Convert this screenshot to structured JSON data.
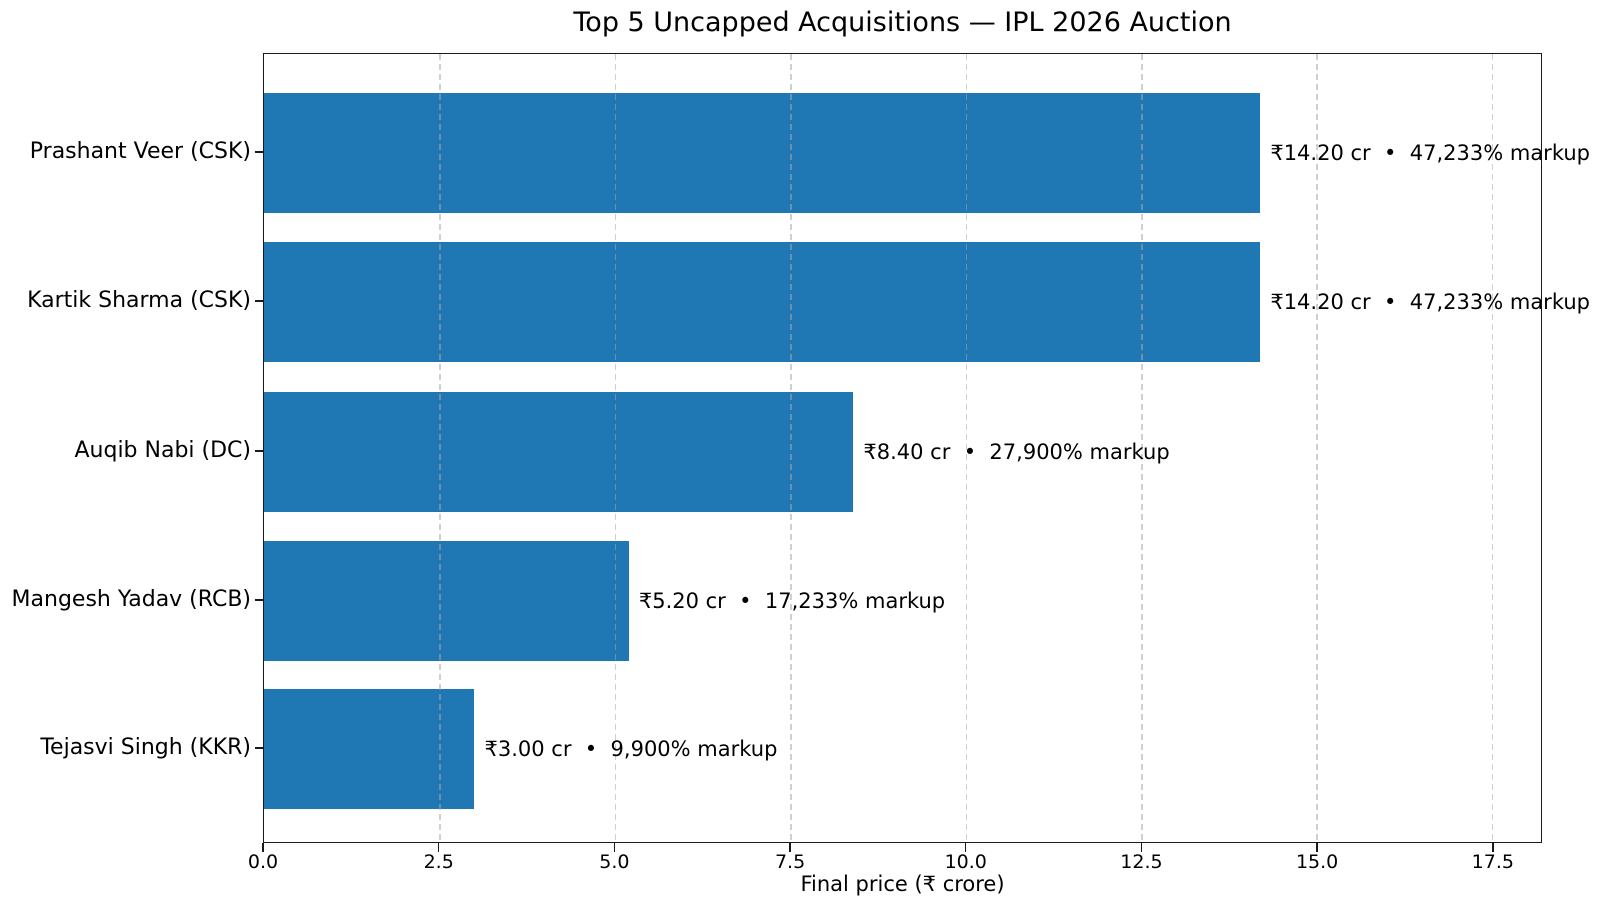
{
  "chart_data": {
    "type": "bar",
    "orientation": "horizontal",
    "title": "Top 5 Uncapped Acquisitions — IPL 2026 Auction",
    "xlabel": "Final price (₹ crore)",
    "ylabel": "",
    "categories": [
      "Prashant Veer (CSK)",
      "Kartik Sharma (CSK)",
      "Auqib Nabi (DC)",
      "Mangesh Yadav (RCB)",
      "Tejasvi Singh (KKR)"
    ],
    "values": [
      14.2,
      14.2,
      8.4,
      5.2,
      3.0
    ],
    "bar_labels": [
      "₹14.20 cr  •  47,233% markup",
      "₹14.20 cr  •  47,233% markup",
      "₹8.40 cr  •  27,900% markup",
      "₹5.20 cr  •  17,233% markup",
      "₹3.00 cr  •  9,900% markup"
    ],
    "xlim": [
      0,
      18.2
    ],
    "xtick_labels": [
      "0.0",
      "2.5",
      "5.0",
      "7.5",
      "10.0",
      "12.5",
      "15.0",
      "17.5"
    ],
    "grid": {
      "axis": "x",
      "linestyle": "dashed",
      "on": true
    },
    "legend_position": "none",
    "colors": {
      "bar": "#1f77b4",
      "grid": "#b0b0b0",
      "spine": "#1a1a1a",
      "text": "#000000",
      "background": "#ffffff"
    }
  }
}
